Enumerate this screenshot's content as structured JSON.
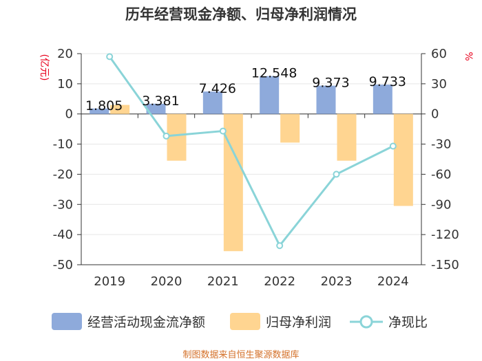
{
  "chart_data": {
    "type": "bar",
    "title": "历年经营现金净额、归母净利润情况",
    "categories": [
      "2019",
      "2020",
      "2021",
      "2022",
      "2023",
      "2024"
    ],
    "series": [
      {
        "name": "经营活动现金流净额",
        "type": "bar",
        "axis": "left",
        "color": "#8eaadb",
        "values": [
          1.805,
          3.381,
          7.426,
          12.548,
          9.373,
          9.733
        ],
        "data_labels": [
          "1.805",
          "3.381",
          "7.426",
          "12.548",
          "9.373",
          "9.733"
        ]
      },
      {
        "name": "归母净利润",
        "type": "bar",
        "axis": "left",
        "color": "#ffd591",
        "values": [
          3.0,
          -15.5,
          -45.5,
          -9.5,
          -15.5,
          -30.5
        ]
      },
      {
        "name": "净现比",
        "type": "line",
        "axis": "right",
        "color": "#8ad4d8",
        "values": [
          57,
          -22,
          -17,
          -131,
          -60,
          -32
        ]
      }
    ],
    "left_axis": {
      "unit": "(亿元)",
      "ylim": [
        -50,
        20
      ],
      "ticks": [
        "20",
        "10",
        "0",
        "-10",
        "-20",
        "-30",
        "-40",
        "-50"
      ]
    },
    "right_axis": {
      "unit": "%",
      "ylim": [
        -150,
        60
      ],
      "ticks": [
        "60",
        "30",
        "0",
        "-30",
        "-60",
        "-90",
        "-120",
        "-150"
      ]
    },
    "legend": {
      "position": "bottom",
      "items": [
        "经营活动现金流净额",
        "归母净利润",
        "净现比"
      ]
    },
    "source": "制图数据来自恒生聚源数据库"
  }
}
